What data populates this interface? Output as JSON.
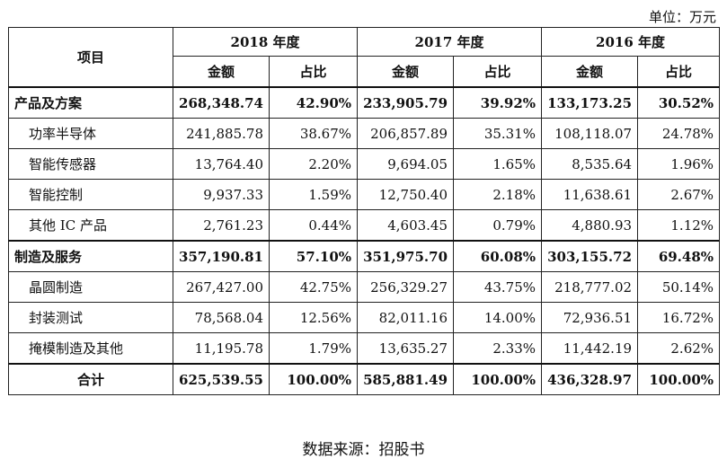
{
  "unit_label": "单位：万元",
  "header": {
    "item": "项目",
    "years": [
      "2018 年度",
      "2017 年度",
      "2016 年度"
    ],
    "amount": "金额",
    "ratio": "占比"
  },
  "rows": [
    {
      "name": "产品及方案",
      "values": [
        "268,348.74",
        "42.90%",
        "233,905.79",
        "39.92%",
        "133,173.25",
        "30.52%"
      ],
      "type": "section"
    },
    {
      "name": "功率半导体",
      "values": [
        "241,885.78",
        "38.67%",
        "206,857.89",
        "35.31%",
        "108,118.07",
        "24.78%"
      ],
      "type": "sub"
    },
    {
      "name": "智能传感器",
      "values": [
        "13,764.40",
        "2.20%",
        "9,694.05",
        "1.65%",
        "8,535.64",
        "1.96%"
      ],
      "type": "sub"
    },
    {
      "name": "智能控制",
      "values": [
        "9,937.33",
        "1.59%",
        "12,750.40",
        "2.18%",
        "11,638.61",
        "2.67%"
      ],
      "type": "sub"
    },
    {
      "name": "其他 IC 产品",
      "values": [
        "2,761.23",
        "0.44%",
        "4,603.45",
        "0.79%",
        "4,880.93",
        "1.12%"
      ],
      "type": "sub"
    },
    {
      "name": "制造及服务",
      "values": [
        "357,190.81",
        "57.10%",
        "351,975.70",
        "60.08%",
        "303,155.72",
        "69.48%"
      ],
      "type": "section"
    },
    {
      "name": "晶圆制造",
      "values": [
        "267,427.00",
        "42.75%",
        "256,329.27",
        "43.75%",
        "218,777.02",
        "50.14%"
      ],
      "type": "sub"
    },
    {
      "name": "封装测试",
      "values": [
        "78,568.04",
        "12.56%",
        "82,011.16",
        "14.00%",
        "72,936.51",
        "16.72%"
      ],
      "type": "sub"
    },
    {
      "name": "掩模制造及其他",
      "values": [
        "11,195.78",
        "1.79%",
        "13,635.27",
        "2.33%",
        "11,442.19",
        "2.62%"
      ],
      "type": "sub"
    },
    {
      "name": "合计",
      "values": [
        "625,539.55",
        "100.00%",
        "585,881.49",
        "100.00%",
        "436,328.97",
        "100.00%"
      ],
      "type": "total"
    }
  ],
  "source": "数据来源：招股书"
}
